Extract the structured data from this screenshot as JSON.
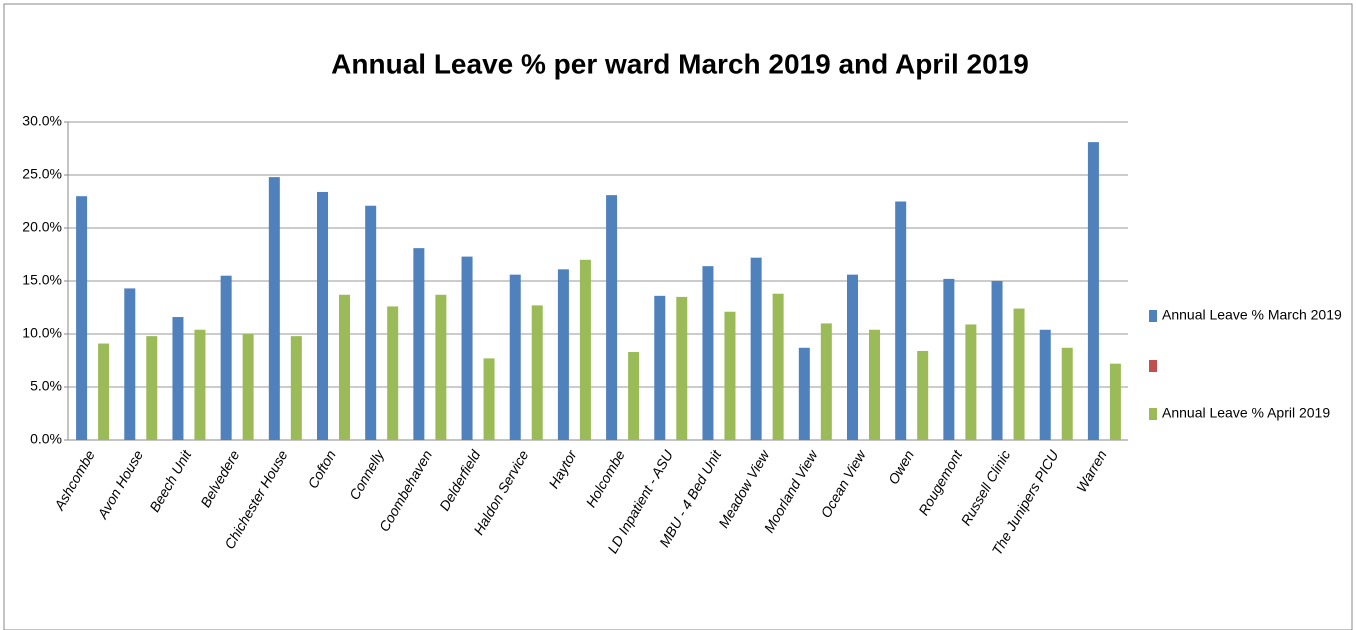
{
  "chart_data": {
    "type": "bar",
    "title": "Annual Leave % per ward March 2019 and April 2019",
    "categories": [
      "Ashcombe",
      "Avon House",
      "Beech Unit",
      "Belvedere",
      "Chichester House",
      "Cofton",
      "Connelly",
      "Coombehaven",
      "Delderfield",
      "Haldon Service",
      "Haytor",
      "Holcombe",
      "LD Inpatient - ASU",
      "MBU - 4 Bed Unit",
      "Meadow View",
      "Moorland View",
      "Ocean View",
      "Owen",
      "Rougemont",
      "Russell Clinic",
      "The Junipers PICU",
      "Warren"
    ],
    "series": [
      {
        "name": "Annual Leave % March 2019",
        "color": "#4f81bd",
        "values": [
          23.0,
          14.3,
          11.6,
          15.5,
          24.8,
          23.4,
          22.1,
          18.1,
          17.3,
          15.6,
          16.1,
          23.1,
          13.6,
          16.4,
          17.2,
          8.7,
          15.6,
          22.5,
          15.2,
          15.0,
          10.4,
          28.1
        ]
      },
      {
        "name": null,
        "color": "#c0504d",
        "values": [
          null,
          null,
          null,
          null,
          null,
          null,
          null,
          null,
          null,
          null,
          null,
          null,
          null,
          null,
          null,
          null,
          null,
          null,
          null,
          null,
          null,
          null
        ]
      },
      {
        "name": "Annual Leave % April 2019",
        "color": "#9bbb59",
        "values": [
          9.1,
          9.8,
          10.4,
          10.0,
          9.8,
          13.7,
          12.6,
          13.7,
          7.7,
          12.7,
          17.0,
          8.3,
          13.5,
          12.1,
          13.8,
          11.0,
          10.4,
          8.4,
          10.9,
          12.4,
          8.7,
          7.2
        ]
      }
    ],
    "ylim": [
      0,
      30
    ],
    "yticks": [
      {
        "value": 0,
        "label": "0.0%"
      },
      {
        "value": 5,
        "label": "5.0%"
      },
      {
        "value": 10,
        "label": "10.0%"
      },
      {
        "value": 15,
        "label": "15.0%"
      },
      {
        "value": 20,
        "label": "20.0%"
      },
      {
        "value": 25,
        "label": "25.0%"
      },
      {
        "value": 30,
        "label": "30.0%"
      }
    ],
    "grid": true,
    "legend": "right"
  }
}
